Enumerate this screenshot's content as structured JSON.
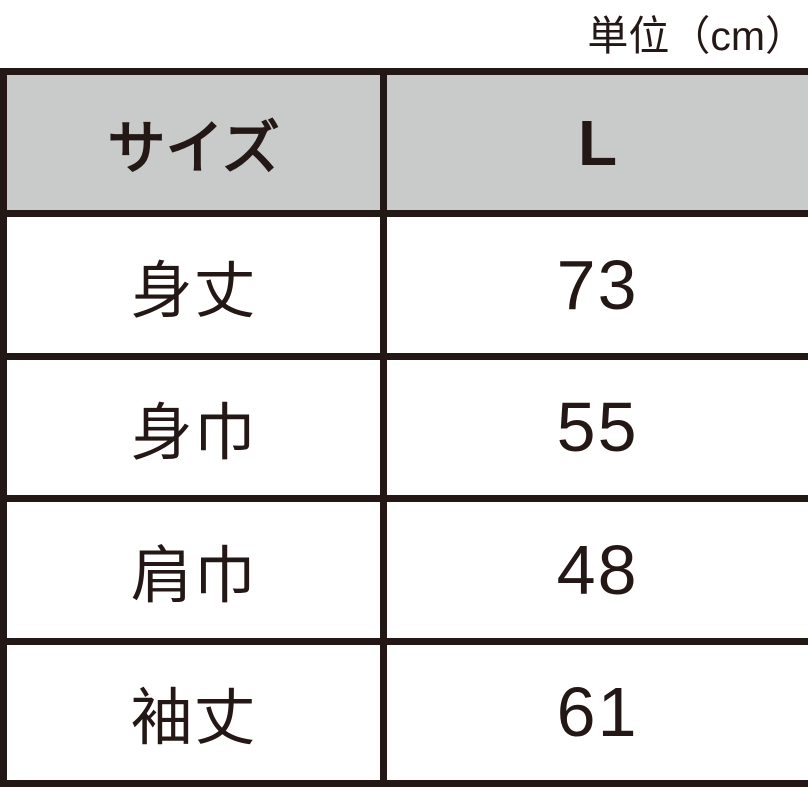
{
  "unit_label": "単位（cm）",
  "table": {
    "header": {
      "size_label": "サイズ",
      "size_value": "L"
    },
    "rows": [
      {
        "label": "身丈",
        "value": "73"
      },
      {
        "label": "身巾",
        "value": "55"
      },
      {
        "label": "肩巾",
        "value": "48"
      },
      {
        "label": "袖丈",
        "value": "61"
      }
    ]
  },
  "colors": {
    "gridline": "#231815",
    "text": "#231815",
    "header_background": "#c9caca",
    "cell_background": "#ffffff",
    "page_background": "#ffffff"
  },
  "chart_data": {
    "type": "table",
    "title": "単位（cm）",
    "columns": [
      "サイズ",
      "L"
    ],
    "rows": [
      [
        "身丈",
        "73"
      ],
      [
        "身巾",
        "55"
      ],
      [
        "肩巾",
        "48"
      ],
      [
        "袖丈",
        "61"
      ]
    ],
    "values_cm": {
      "身丈": 73,
      "身巾": 55,
      "肩巾": 48,
      "袖丈": 61
    },
    "layout": {
      "header_shaded": true,
      "grid_on": true,
      "unit_label_position": "top-right"
    }
  }
}
